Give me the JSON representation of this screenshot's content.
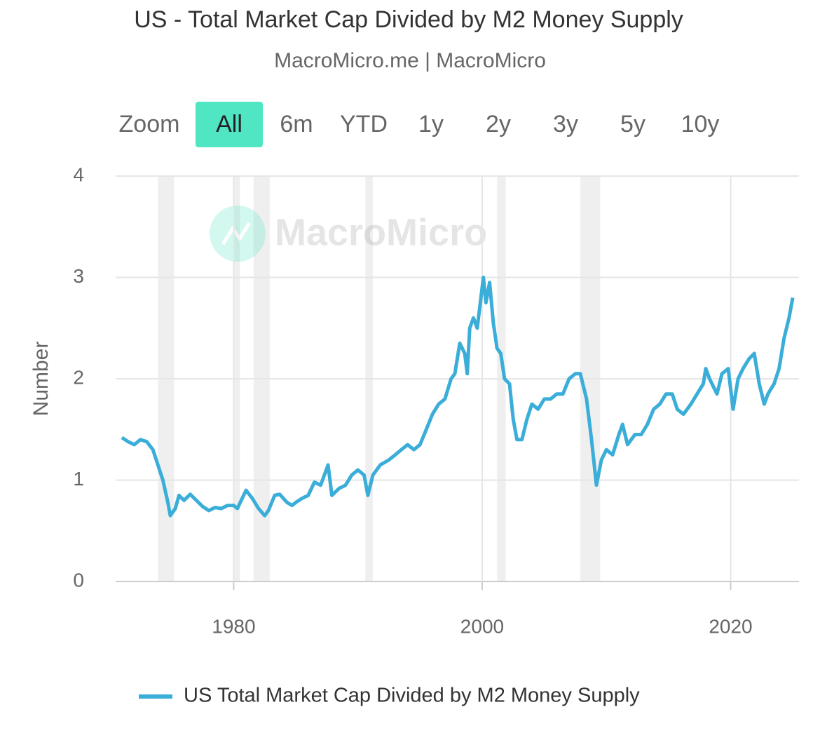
{
  "chart_data": {
    "type": "line",
    "title": "US - Total Market Cap Divided by M2 Money Supply",
    "subtitle": "MacroMicro.me | MacroMicro",
    "watermark": "MacroMicro",
    "zoom_label": "Zoom",
    "zoom_buttons": [
      "All",
      "6m",
      "YTD",
      "1y",
      "2y",
      "3y",
      "5y",
      "10y"
    ],
    "zoom_selected": "All",
    "y_axis_label": "Number",
    "xlim": [
      1970.5,
      2025.5
    ],
    "xticks": [
      1980,
      2000,
      2020
    ],
    "ylim": [
      0,
      4
    ],
    "yticks": [
      0,
      1,
      2,
      3,
      4
    ],
    "grid": true,
    "shaded_periods": [
      [
        1973.9,
        1975.2
      ],
      [
        1980.0,
        1980.5
      ],
      [
        1981.6,
        1982.9
      ],
      [
        1990.6,
        1991.2
      ],
      [
        2001.2,
        2001.9
      ],
      [
        2007.9,
        2009.5
      ]
    ],
    "shade_color": "#efefef",
    "legend": "bottom",
    "x": [
      1971.0,
      1971.5,
      1972.0,
      1972.5,
      1973.0,
      1973.5,
      1973.9,
      1974.3,
      1974.7,
      1974.9,
      1975.3,
      1975.6,
      1976.0,
      1976.5,
      1977.0,
      1977.5,
      1978.0,
      1978.5,
      1979.0,
      1979.5,
      1980.0,
      1980.3,
      1980.8,
      1981.0,
      1981.5,
      1982.0,
      1982.5,
      1982.8,
      1983.3,
      1983.7,
      1984.3,
      1984.7,
      1985.0,
      1985.5,
      1986.0,
      1986.5,
      1987.0,
      1987.6,
      1987.9,
      1988.5,
      1989.0,
      1989.5,
      1990.0,
      1990.5,
      1990.8,
      1991.2,
      1991.8,
      1992.5,
      1993.0,
      1993.5,
      1994.0,
      1994.5,
      1995.0,
      1995.5,
      1996.0,
      1996.5,
      1997.0,
      1997.5,
      1997.8,
      1998.2,
      1998.6,
      1998.8,
      1999.0,
      1999.3,
      1999.6,
      1999.9,
      2000.1,
      2000.3,
      2000.6,
      2000.9,
      2001.2,
      2001.5,
      2001.8,
      2002.2,
      2002.5,
      2002.8,
      2003.2,
      2003.6,
      2004.0,
      2004.5,
      2005.0,
      2005.5,
      2006.0,
      2006.5,
      2007.0,
      2007.5,
      2007.9,
      2008.4,
      2008.8,
      2009.2,
      2009.6,
      2010.0,
      2010.5,
      2011.0,
      2011.3,
      2011.7,
      2012.3,
      2012.8,
      2013.3,
      2013.8,
      2014.3,
      2014.8,
      2015.3,
      2015.7,
      2016.2,
      2016.8,
      2017.3,
      2017.8,
      2018.0,
      2018.3,
      2018.9,
      2019.3,
      2019.8,
      2020.2,
      2020.6,
      2021.0,
      2021.5,
      2021.9,
      2022.3,
      2022.7,
      2023.0,
      2023.5,
      2023.9,
      2024.3,
      2024.7,
      2025.0
    ],
    "series": [
      {
        "name": "US Total Market Cap Divided by M2 Money Supply",
        "color": "#3aaed8",
        "values": [
          1.42,
          1.38,
          1.35,
          1.4,
          1.38,
          1.3,
          1.15,
          1.0,
          0.78,
          0.65,
          0.72,
          0.85,
          0.8,
          0.86,
          0.8,
          0.74,
          0.7,
          0.73,
          0.72,
          0.75,
          0.75,
          0.72,
          0.85,
          0.9,
          0.82,
          0.72,
          0.65,
          0.7,
          0.85,
          0.86,
          0.78,
          0.75,
          0.78,
          0.82,
          0.85,
          0.98,
          0.95,
          1.15,
          0.85,
          0.92,
          0.95,
          1.05,
          1.1,
          1.05,
          0.85,
          1.05,
          1.15,
          1.2,
          1.25,
          1.3,
          1.35,
          1.3,
          1.35,
          1.5,
          1.65,
          1.75,
          1.8,
          2.0,
          2.05,
          2.35,
          2.25,
          2.05,
          2.5,
          2.6,
          2.5,
          2.8,
          3.0,
          2.75,
          2.95,
          2.55,
          2.3,
          2.25,
          2.0,
          1.95,
          1.6,
          1.4,
          1.4,
          1.6,
          1.75,
          1.7,
          1.8,
          1.8,
          1.85,
          1.85,
          2.0,
          2.05,
          2.05,
          1.8,
          1.4,
          0.95,
          1.2,
          1.3,
          1.25,
          1.45,
          1.55,
          1.35,
          1.45,
          1.45,
          1.55,
          1.7,
          1.75,
          1.85,
          1.85,
          1.7,
          1.65,
          1.75,
          1.85,
          1.95,
          2.1,
          2.0,
          1.85,
          2.05,
          2.1,
          1.7,
          2.0,
          2.1,
          2.2,
          2.25,
          1.95,
          1.75,
          1.85,
          1.95,
          2.1,
          2.4,
          2.6,
          2.8
        ]
      }
    ]
  }
}
